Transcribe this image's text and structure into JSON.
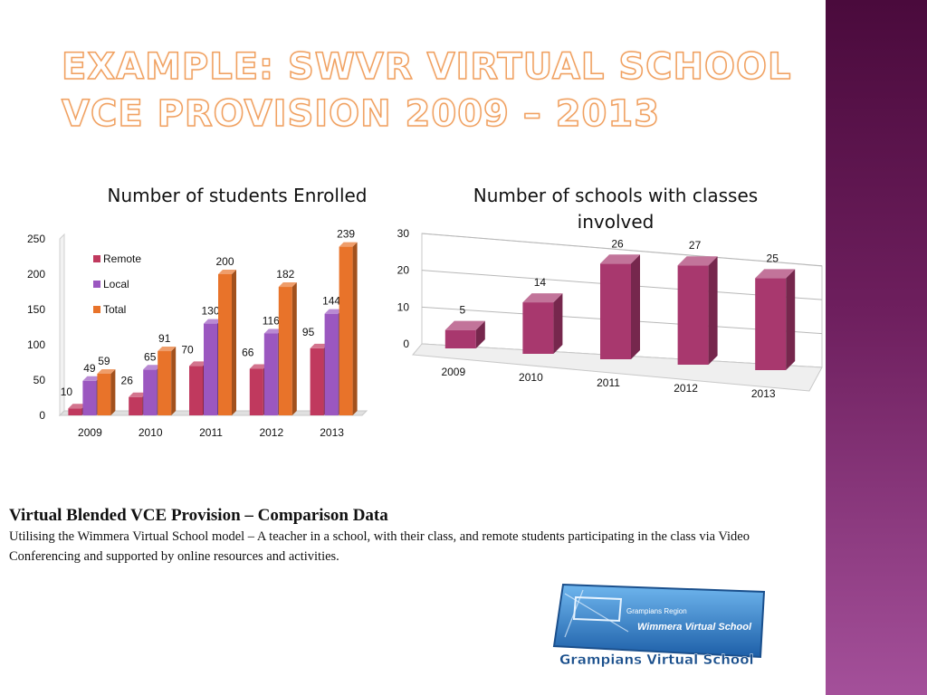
{
  "slide": {
    "title": "EXAMPLE: SWVR VIRTUAL SCHOOL VCE PROVISION 2009 – 2013"
  },
  "chart_data": [
    {
      "type": "bar",
      "title": "Number of students Enrolled",
      "categories": [
        "2009",
        "2010",
        "2011",
        "2012",
        "2013"
      ],
      "series": [
        {
          "name": "Remote",
          "values": [
            10,
            26,
            70,
            66,
            95
          ],
          "color": "#c0395e"
        },
        {
          "name": "Local",
          "values": [
            49,
            65,
            130,
            116,
            144
          ],
          "color": "#9b57c0"
        },
        {
          "name": "Total",
          "values": [
            59,
            91,
            200,
            182,
            239
          ],
          "color": "#e8732a"
        }
      ],
      "ylim": [
        0,
        250
      ],
      "yticks": [
        0,
        50,
        100,
        150,
        200,
        250
      ],
      "legend": "top-left"
    },
    {
      "type": "bar",
      "title": "Number of schools with classes involved",
      "categories": [
        "2009",
        "2010",
        "2011",
        "2012",
        "2013"
      ],
      "values": [
        5,
        14,
        26,
        27,
        25
      ],
      "color": "#a8386e",
      "ylim": [
        0,
        30
      ],
      "yticks": [
        0,
        10,
        20,
        30
      ]
    }
  ],
  "caption": {
    "heading": "Virtual Blended VCE Provision – Comparison Data",
    "body": "Utilising the Wimmera Virtual School model – A teacher in a school, with their class, and remote students participating in the class via Video Conferencing and supported by online resources and activities."
  },
  "logo": {
    "region_text": "Grampians Region",
    "school_text": "Wimmera Virtual School",
    "footer_text": "Grampians Virtual School"
  }
}
